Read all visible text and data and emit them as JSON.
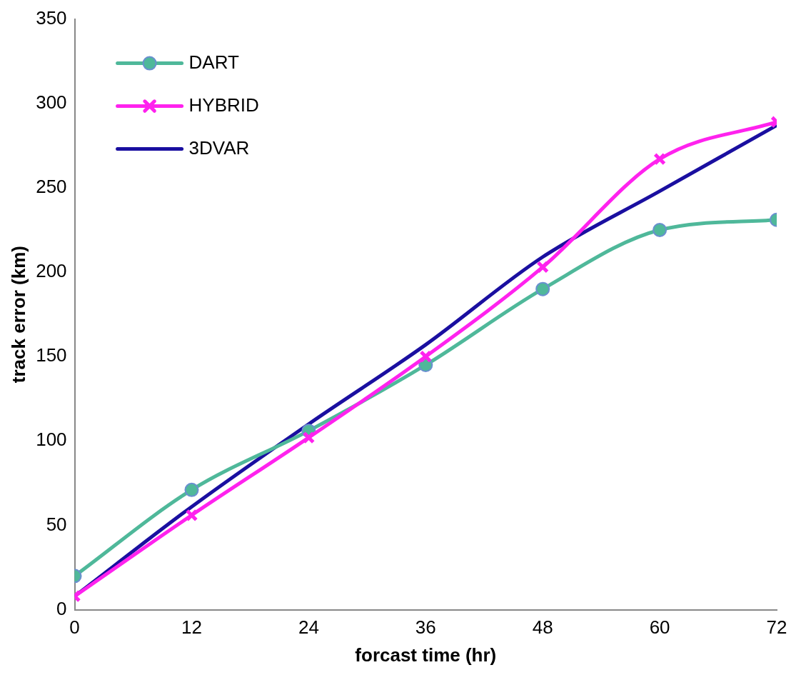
{
  "chart_data": {
    "type": "line",
    "xlabel": "forcast time (hr)",
    "ylabel": "track error (km)",
    "x": [
      0,
      12,
      24,
      36,
      48,
      60,
      72
    ],
    "xlim": [
      0,
      72
    ],
    "xticks": [
      0,
      12,
      24,
      36,
      48,
      60,
      72
    ],
    "ylim": [
      0,
      350
    ],
    "yticks": [
      0,
      50,
      100,
      150,
      200,
      250,
      300,
      350
    ],
    "grid": false,
    "legend": "top left",
    "series": [
      {
        "name": "DART",
        "color": "#4fb89a",
        "marker": "circle",
        "values": [
          20,
          71,
          106,
          145,
          190,
          225,
          231
        ]
      },
      {
        "name": "HYBRID",
        "color": "#ff22ee",
        "marker": "cross",
        "values": [
          8,
          56,
          102,
          150,
          203,
          267,
          289
        ]
      },
      {
        "name": "3DVAR",
        "color": "#1a0fa0",
        "marker": "none",
        "values": [
          8,
          61,
          110,
          157,
          209,
          248,
          287
        ]
      }
    ]
  }
}
